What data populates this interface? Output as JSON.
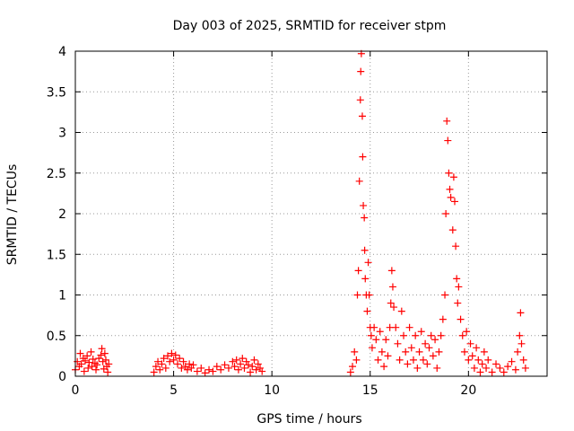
{
  "chart_data": {
    "type": "scatter",
    "title": "Day 003 of 2025, SRMTID for receiver stpm",
    "xlabel": "GPS time / hours",
    "ylabel": "SRMTID / TECUs",
    "xlim": [
      0,
      24
    ],
    "ylim": [
      0,
      4
    ],
    "xticks": [
      0,
      5,
      10,
      15,
      20
    ],
    "xtick_labels": [
      "0",
      "5",
      "10",
      "15",
      "20"
    ],
    "yticks": [
      0,
      0.5,
      1,
      1.5,
      2,
      2.5,
      3,
      3.5,
      4
    ],
    "ytick_labels": [
      "0",
      "0.5",
      "1",
      "1.5",
      "2",
      "2.5",
      "3",
      "3.5",
      "4"
    ],
    "grid": true,
    "marker": "+",
    "color": "#ff0000",
    "series": [
      {
        "name": "SRMTID",
        "points": [
          [
            0.0,
            0.08
          ],
          [
            0.1,
            0.18
          ],
          [
            0.2,
            0.12
          ],
          [
            0.25,
            0.28
          ],
          [
            0.3,
            0.15
          ],
          [
            0.4,
            0.22
          ],
          [
            0.45,
            0.06
          ],
          [
            0.5,
            0.19
          ],
          [
            0.6,
            0.25
          ],
          [
            0.65,
            0.1
          ],
          [
            0.7,
            0.17
          ],
          [
            0.8,
            0.3
          ],
          [
            0.85,
            0.12
          ],
          [
            0.9,
            0.21
          ],
          [
            1.0,
            0.16
          ],
          [
            1.05,
            0.08
          ],
          [
            1.1,
            0.14
          ],
          [
            1.2,
            0.22
          ],
          [
            1.3,
            0.26
          ],
          [
            1.35,
            0.34
          ],
          [
            1.4,
            0.18
          ],
          [
            1.45,
            0.09
          ],
          [
            1.5,
            0.28
          ],
          [
            1.55,
            0.2
          ],
          [
            1.6,
            0.12
          ],
          [
            1.65,
            0.05
          ],
          [
            1.7,
            0.15
          ],
          [
            4.0,
            0.05
          ],
          [
            4.1,
            0.12
          ],
          [
            4.2,
            0.18
          ],
          [
            4.3,
            0.08
          ],
          [
            4.4,
            0.15
          ],
          [
            4.5,
            0.22
          ],
          [
            4.6,
            0.1
          ],
          [
            4.7,
            0.25
          ],
          [
            4.8,
            0.18
          ],
          [
            4.9,
            0.28
          ],
          [
            5.0,
            0.2
          ],
          [
            5.1,
            0.26
          ],
          [
            5.2,
            0.15
          ],
          [
            5.3,
            0.22
          ],
          [
            5.4,
            0.1
          ],
          [
            5.5,
            0.18
          ],
          [
            5.6,
            0.12
          ],
          [
            5.7,
            0.08
          ],
          [
            5.8,
            0.15
          ],
          [
            5.9,
            0.1
          ],
          [
            6.0,
            0.14
          ],
          [
            6.2,
            0.06
          ],
          [
            6.4,
            0.1
          ],
          [
            6.6,
            0.04
          ],
          [
            6.8,
            0.08
          ],
          [
            7.0,
            0.06
          ],
          [
            7.2,
            0.12
          ],
          [
            7.4,
            0.08
          ],
          [
            7.6,
            0.14
          ],
          [
            7.8,
            0.1
          ],
          [
            8.0,
            0.18
          ],
          [
            8.1,
            0.12
          ],
          [
            8.2,
            0.2
          ],
          [
            8.3,
            0.08
          ],
          [
            8.4,
            0.15
          ],
          [
            8.5,
            0.22
          ],
          [
            8.6,
            0.1
          ],
          [
            8.7,
            0.18
          ],
          [
            8.8,
            0.14
          ],
          [
            8.9,
            0.05
          ],
          [
            9.0,
            0.12
          ],
          [
            9.1,
            0.2
          ],
          [
            9.2,
            0.08
          ],
          [
            9.3,
            0.15
          ],
          [
            9.4,
            0.1
          ],
          [
            9.5,
            0.06
          ],
          [
            14.0,
            0.05
          ],
          [
            14.1,
            0.12
          ],
          [
            14.2,
            0.3
          ],
          [
            14.3,
            0.2
          ],
          [
            14.35,
            1.0
          ],
          [
            14.4,
            1.3
          ],
          [
            14.45,
            2.4
          ],
          [
            14.5,
            3.4
          ],
          [
            14.52,
            3.75
          ],
          [
            14.55,
            3.97
          ],
          [
            14.6,
            3.2
          ],
          [
            14.62,
            2.7
          ],
          [
            14.65,
            2.1
          ],
          [
            14.7,
            1.95
          ],
          [
            14.72,
            1.55
          ],
          [
            14.75,
            1.2
          ],
          [
            14.8,
            1.0
          ],
          [
            14.85,
            0.8
          ],
          [
            14.9,
            1.4
          ],
          [
            14.95,
            1.0
          ],
          [
            15.0,
            0.6
          ],
          [
            15.05,
            0.5
          ],
          [
            15.1,
            0.35
          ],
          [
            15.2,
            0.6
          ],
          [
            15.3,
            0.45
          ],
          [
            15.4,
            0.2
          ],
          [
            15.5,
            0.55
          ],
          [
            15.6,
            0.3
          ],
          [
            15.7,
            0.12
          ],
          [
            15.8,
            0.45
          ],
          [
            15.9,
            0.25
          ],
          [
            16.0,
            0.6
          ],
          [
            16.05,
            0.9
          ],
          [
            16.1,
            1.3
          ],
          [
            16.15,
            1.1
          ],
          [
            16.2,
            0.85
          ],
          [
            16.3,
            0.6
          ],
          [
            16.4,
            0.4
          ],
          [
            16.5,
            0.2
          ],
          [
            16.6,
            0.8
          ],
          [
            16.7,
            0.5
          ],
          [
            16.8,
            0.3
          ],
          [
            16.9,
            0.15
          ],
          [
            17.0,
            0.6
          ],
          [
            17.1,
            0.35
          ],
          [
            17.2,
            0.2
          ],
          [
            17.3,
            0.5
          ],
          [
            17.4,
            0.1
          ],
          [
            17.5,
            0.3
          ],
          [
            17.6,
            0.55
          ],
          [
            17.7,
            0.2
          ],
          [
            17.8,
            0.4
          ],
          [
            17.9,
            0.15
          ],
          [
            18.0,
            0.35
          ],
          [
            18.1,
            0.5
          ],
          [
            18.2,
            0.25
          ],
          [
            18.3,
            0.45
          ],
          [
            18.4,
            0.1
          ],
          [
            18.5,
            0.3
          ],
          [
            18.6,
            0.5
          ],
          [
            18.7,
            0.7
          ],
          [
            18.8,
            1.0
          ],
          [
            18.85,
            2.0
          ],
          [
            18.9,
            3.14
          ],
          [
            18.95,
            2.9
          ],
          [
            19.0,
            2.5
          ],
          [
            19.05,
            2.3
          ],
          [
            19.1,
            2.2
          ],
          [
            19.2,
            1.8
          ],
          [
            19.25,
            2.45
          ],
          [
            19.3,
            2.15
          ],
          [
            19.35,
            1.6
          ],
          [
            19.4,
            1.2
          ],
          [
            19.45,
            0.9
          ],
          [
            19.5,
            1.1
          ],
          [
            19.6,
            0.7
          ],
          [
            19.7,
            0.5
          ],
          [
            19.8,
            0.3
          ],
          [
            19.9,
            0.55
          ],
          [
            20.0,
            0.2
          ],
          [
            20.1,
            0.4
          ],
          [
            20.2,
            0.25
          ],
          [
            20.3,
            0.1
          ],
          [
            20.4,
            0.35
          ],
          [
            20.5,
            0.2
          ],
          [
            20.6,
            0.05
          ],
          [
            20.7,
            0.15
          ],
          [
            20.8,
            0.3
          ],
          [
            20.9,
            0.1
          ],
          [
            21.0,
            0.2
          ],
          [
            21.2,
            0.05
          ],
          [
            21.4,
            0.15
          ],
          [
            21.6,
            0.1
          ],
          [
            21.8,
            0.05
          ],
          [
            22.0,
            0.12
          ],
          [
            22.2,
            0.18
          ],
          [
            22.4,
            0.08
          ],
          [
            22.5,
            0.3
          ],
          [
            22.6,
            0.5
          ],
          [
            22.65,
            0.78
          ],
          [
            22.7,
            0.4
          ],
          [
            22.8,
            0.2
          ],
          [
            22.9,
            0.1
          ]
        ]
      }
    ]
  }
}
